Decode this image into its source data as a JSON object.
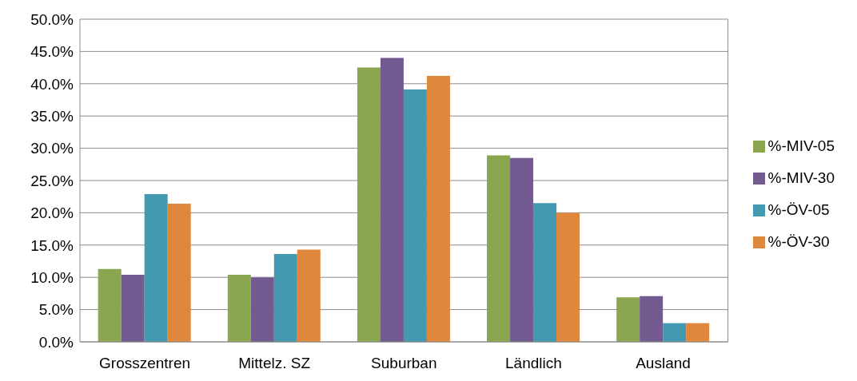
{
  "chart_data": {
    "type": "bar",
    "categories": [
      "Grosszentren",
      "Mittelz. SZ",
      "Suburban",
      "Ländlich",
      "Ausland"
    ],
    "series": [
      {
        "name": "%-MIV-05",
        "color": "#8aa64f",
        "values": [
          11.3,
          10.4,
          42.5,
          28.9,
          6.9
        ]
      },
      {
        "name": "%-MIV-30",
        "color": "#735a91",
        "values": [
          10.4,
          10.0,
          44.0,
          28.5,
          7.1
        ]
      },
      {
        "name": "%-ÖV-05",
        "color": "#4299b0",
        "values": [
          22.9,
          13.6,
          39.1,
          21.5,
          2.9
        ]
      },
      {
        "name": "%-ÖV-30",
        "color": "#e0873e",
        "values": [
          21.4,
          14.3,
          41.2,
          20.0,
          2.9
        ]
      }
    ],
    "ylim": [
      0,
      50
    ],
    "yticks": [
      {
        "value": 0,
        "label": "0.0%"
      },
      {
        "value": 5,
        "label": "5.0%"
      },
      {
        "value": 10,
        "label": "10.0%"
      },
      {
        "value": 15,
        "label": "15.0%"
      },
      {
        "value": 20,
        "label": "20.0%"
      },
      {
        "value": 25,
        "label": "25.0%"
      },
      {
        "value": 30,
        "label": "30.0%"
      },
      {
        "value": 35,
        "label": "35.0%"
      },
      {
        "value": 40,
        "label": "40.0%"
      },
      {
        "value": 45,
        "label": "45.0%"
      },
      {
        "value": 50,
        "label": "50.0%"
      }
    ],
    "grid": "y",
    "legend": "right"
  }
}
